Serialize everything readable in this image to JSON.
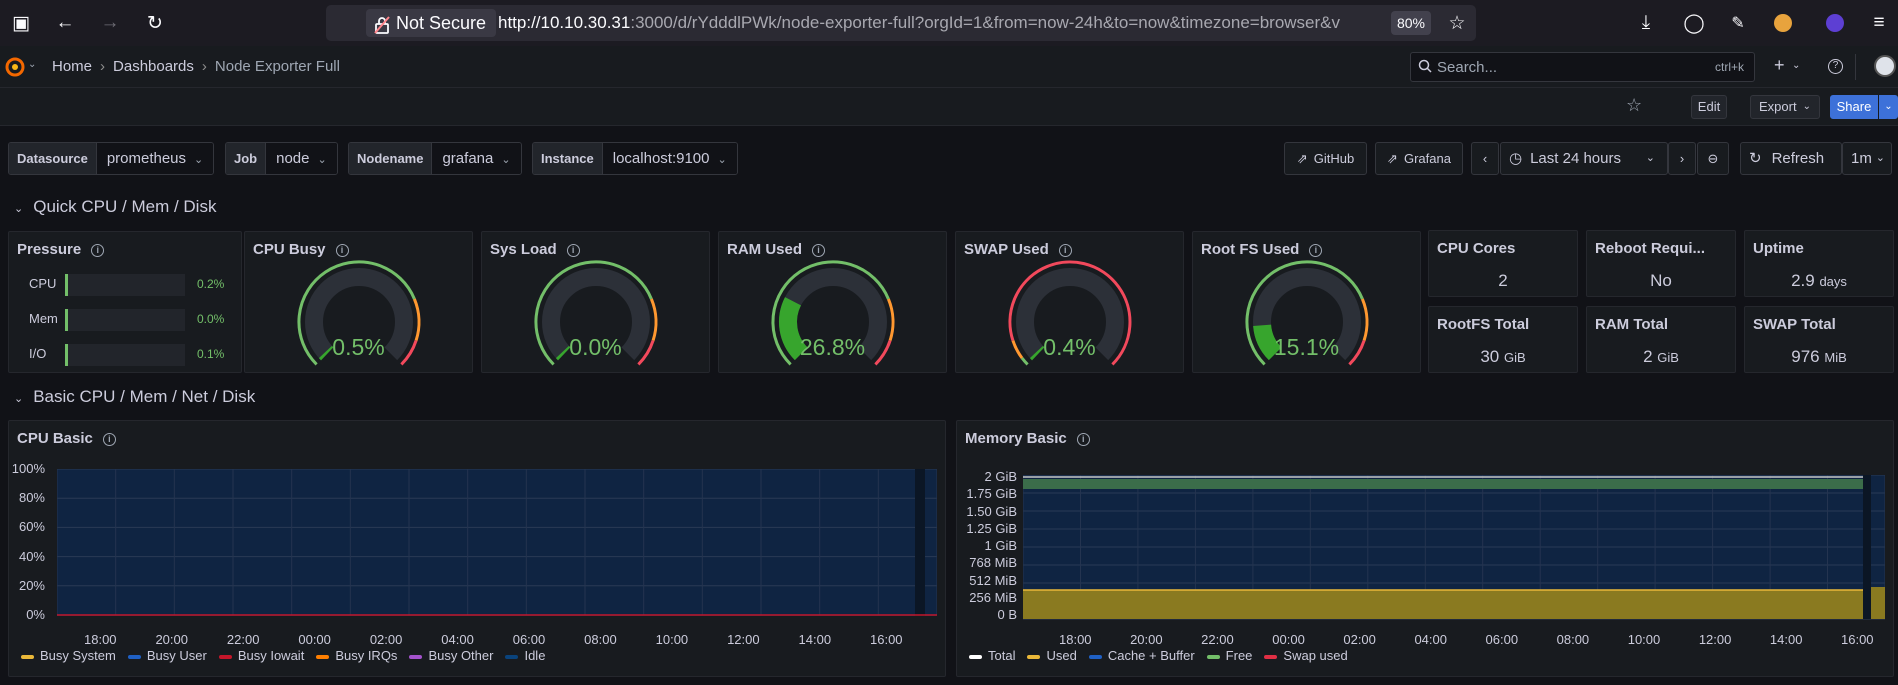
{
  "browser": {
    "not_secure": "Not Secure",
    "url_host": "http://10.10.30.31",
    "url_rest": ":3000/d/rYdddlPWk/node-exporter-full?orgId=1&from=now-24h&to=now&timezone=browser&v",
    "zoom": "80%"
  },
  "nav": {
    "crumbs": [
      "Home",
      "Dashboards",
      "Node Exporter Full"
    ],
    "search_placeholder": "Search...",
    "search_shortcut": "ctrl+k"
  },
  "actions": {
    "edit": "Edit",
    "export": "Export",
    "share": "Share"
  },
  "variables": [
    {
      "label": "Datasource",
      "value": "prometheus"
    },
    {
      "label": "Job",
      "value": "node"
    },
    {
      "label": "Nodename",
      "value": "grafana"
    },
    {
      "label": "Instance",
      "value": "localhost:9100"
    }
  ],
  "toolbar": {
    "github": "GitHub",
    "grafana": "Grafana",
    "time_range": "Last 24 hours",
    "refresh": "Refresh",
    "interval": "1m"
  },
  "rows": {
    "quick": "Quick CPU / Mem / Disk",
    "basic": "Basic CPU / Mem / Net / Disk"
  },
  "pressure": {
    "title": "Pressure",
    "items": [
      {
        "label": "CPU",
        "value": "0.2%",
        "level": 0.002
      },
      {
        "label": "Mem",
        "value": "0.0%",
        "level": 0.0
      },
      {
        "label": "I/O",
        "value": "0.1%",
        "level": 0.001
      }
    ]
  },
  "gauges": [
    {
      "title": "CPU Busy",
      "value": "0.5%",
      "level": 0.005,
      "scale": "green"
    },
    {
      "title": "Sys Load",
      "value": "0.0%",
      "level": 0.0,
      "scale": "green"
    },
    {
      "title": "RAM Used",
      "value": "26.8%",
      "level": 0.268,
      "scale": "green"
    },
    {
      "title": "SWAP Used",
      "value": "0.4%",
      "level": 0.004,
      "scale": "red"
    },
    {
      "title": "Root FS Used",
      "value": "15.1%",
      "level": 0.151,
      "scale": "green"
    }
  ],
  "stats": [
    {
      "title": "CPU Cores",
      "value": "2",
      "unit": ""
    },
    {
      "title": "Reboot Requi...",
      "value": "No",
      "unit": ""
    },
    {
      "title": "Uptime",
      "value": "2.9",
      "unit": "days"
    },
    {
      "title": "RootFS Total",
      "value": "30",
      "unit": "GiB"
    },
    {
      "title": "RAM Total",
      "value": "2",
      "unit": "GiB"
    },
    {
      "title": "SWAP Total",
      "value": "976",
      "unit": "MiB"
    }
  ],
  "cpu_basic": {
    "title": "CPU Basic",
    "yticks": [
      "100%",
      "80%",
      "60%",
      "40%",
      "20%",
      "0%"
    ],
    "xticks": [
      "18:00",
      "20:00",
      "22:00",
      "00:00",
      "02:00",
      "04:00",
      "06:00",
      "08:00",
      "10:00",
      "12:00",
      "14:00",
      "16:00"
    ],
    "legend": [
      {
        "name": "Busy System",
        "color": "#eab839"
      },
      {
        "name": "Busy User",
        "color": "#1f60c4"
      },
      {
        "name": "Busy Iowait",
        "color": "#c4162a"
      },
      {
        "name": "Busy IRQs",
        "color": "#ff7f00"
      },
      {
        "name": "Busy Other",
        "color": "#a352cc"
      },
      {
        "name": "Idle",
        "color": "#0a437c"
      }
    ]
  },
  "memory_basic": {
    "title": "Memory Basic",
    "yticks": [
      "2 GiB",
      "1.75 GiB",
      "1.50 GiB",
      "1.25 GiB",
      "1 GiB",
      "768 MiB",
      "512 MiB",
      "256 MiB",
      "0 B"
    ],
    "xticks": [
      "18:00",
      "20:00",
      "22:00",
      "00:00",
      "02:00",
      "04:00",
      "06:00",
      "08:00",
      "10:00",
      "12:00",
      "14:00",
      "16:00"
    ],
    "legend": [
      {
        "name": "Total",
        "color": "#ffffff"
      },
      {
        "name": "Used",
        "color": "#eab839"
      },
      {
        "name": "Cache + Buffer",
        "color": "#1f60c4"
      },
      {
        "name": "Free",
        "color": "#73bf69"
      },
      {
        "name": "Swap used",
        "color": "#e02f44"
      }
    ]
  }
}
